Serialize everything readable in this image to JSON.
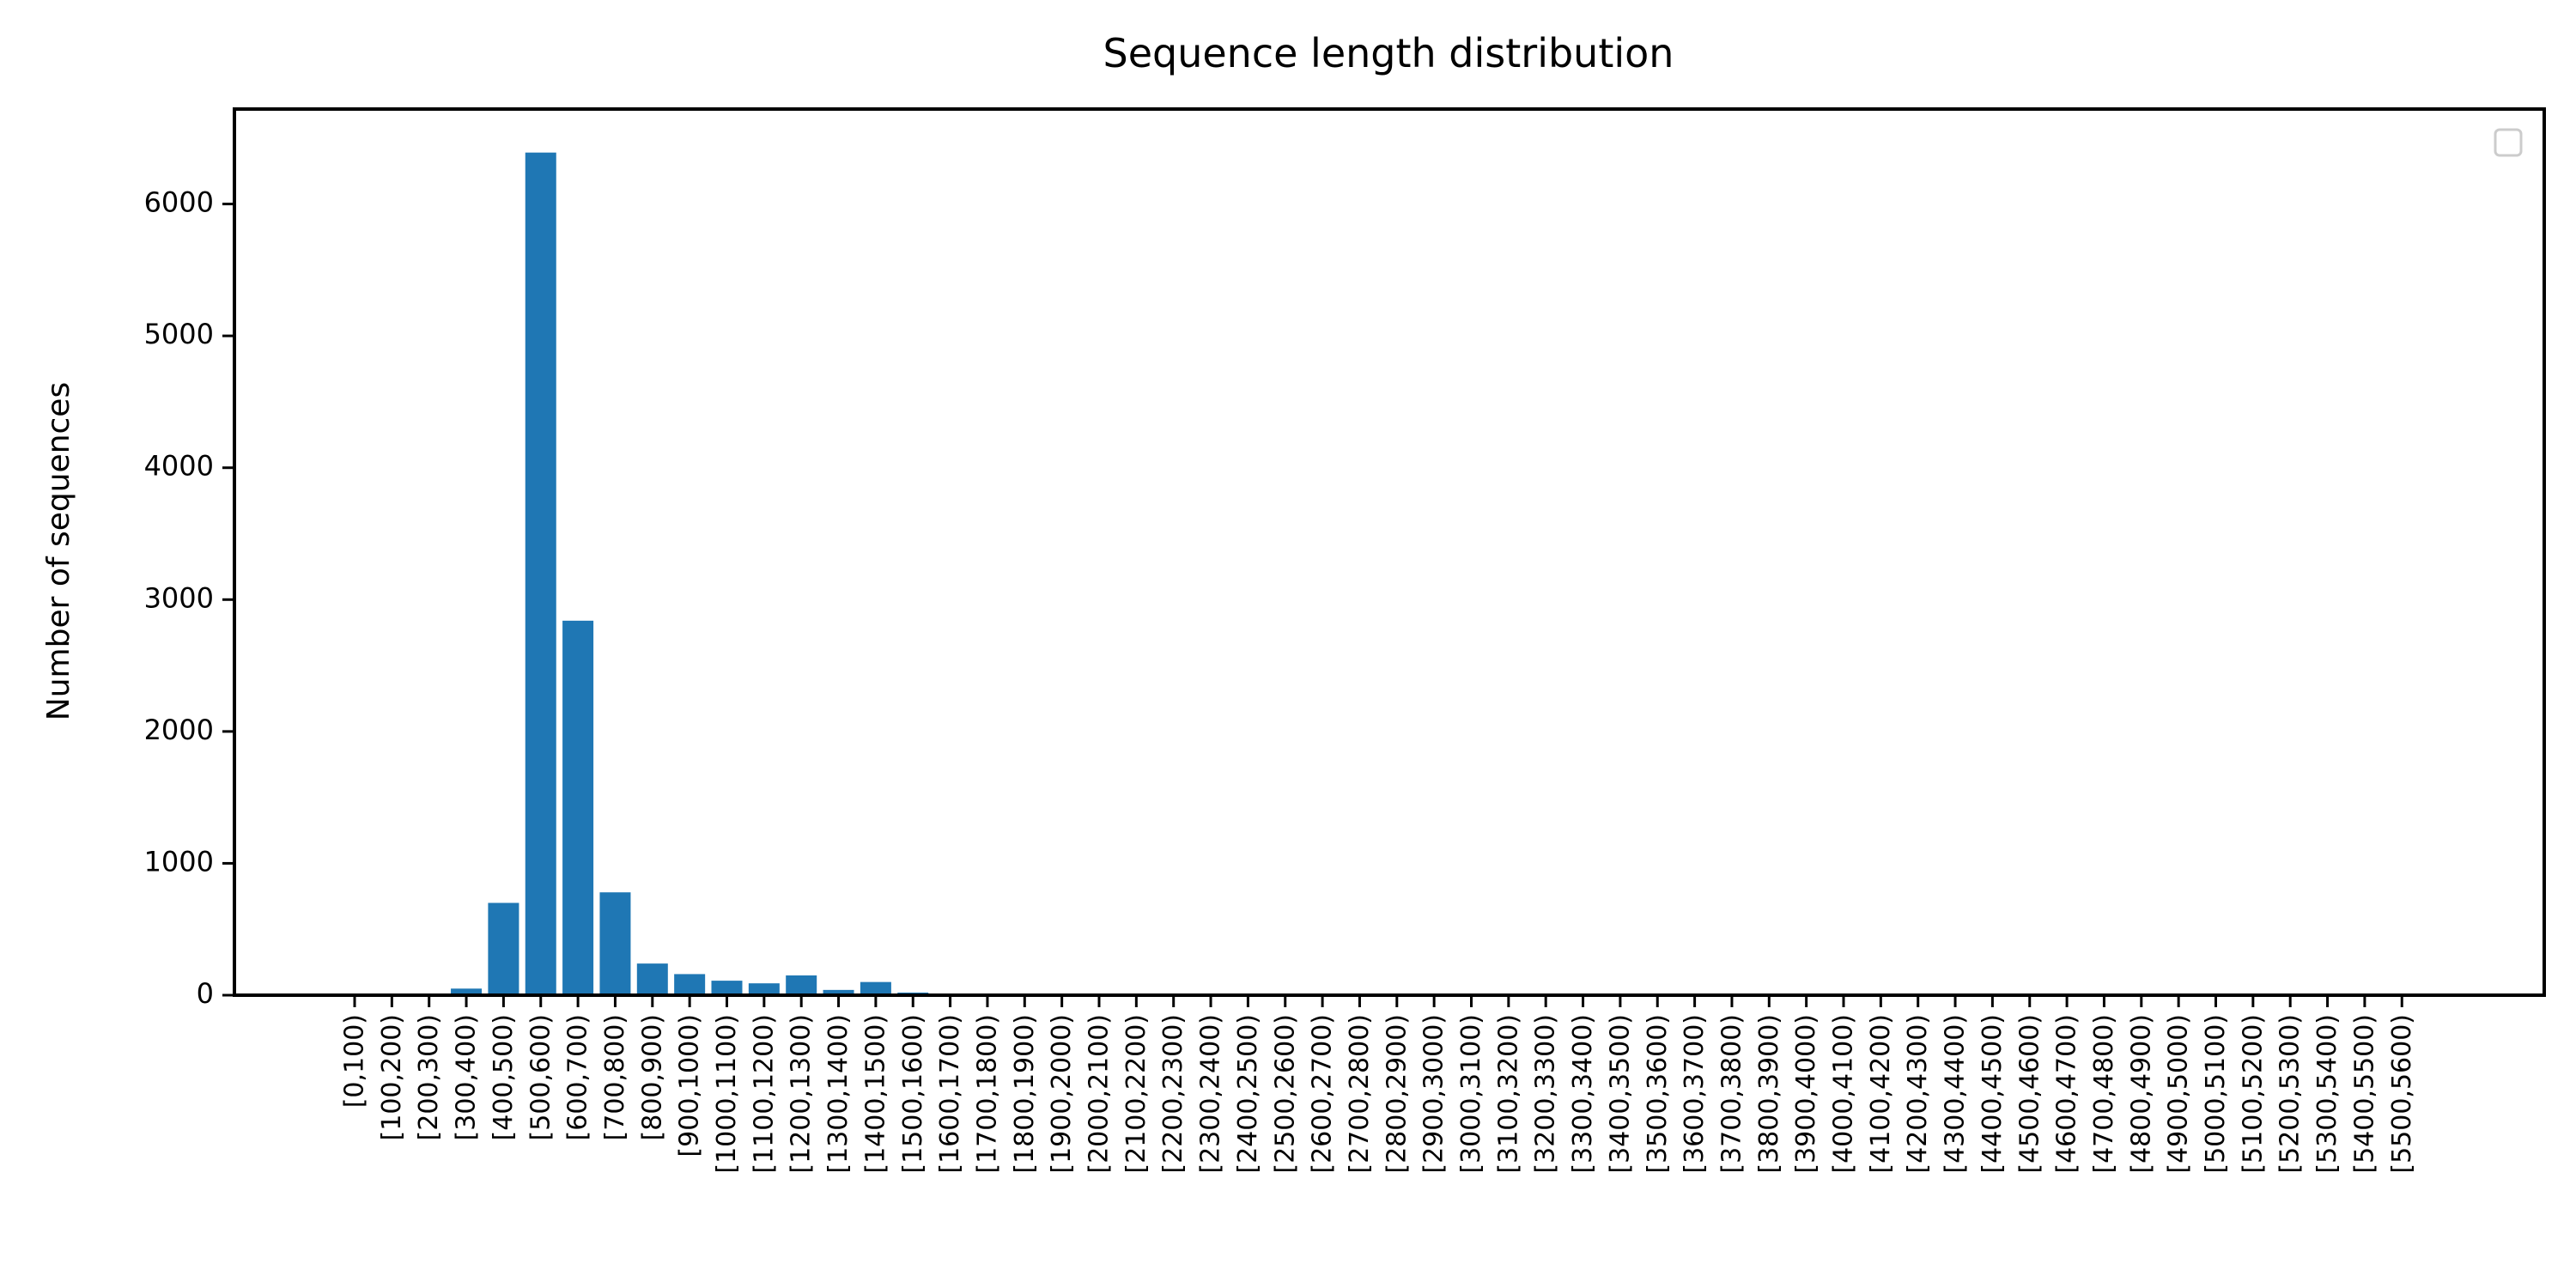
{
  "chart_data": {
    "type": "bar",
    "title": "Sequence length distribution",
    "xlabel": "",
    "ylabel": "Number of sequences",
    "ylim": [
      0,
      6720
    ],
    "yticks": [
      0,
      1000,
      2000,
      3000,
      4000,
      5000,
      6000
    ],
    "grid": false,
    "legend": {
      "placement": "top-right",
      "entries": []
    },
    "colors": {
      "bar": "#1f77b4",
      "axis": "#000000",
      "legend_border": "#cccccc"
    },
    "categories": [
      "[0,100)",
      "[100,200)",
      "[200,300)",
      "[300,400)",
      "[400,500)",
      "[500,600)",
      "[600,700)",
      "[700,800)",
      "[800,900)",
      "[900,1000)",
      "[1000,1100)",
      "[1100,1200)",
      "[1200,1300)",
      "[1300,1400)",
      "[1400,1500)",
      "[1500,1600)",
      "[1600,1700)",
      "[1700,1800)",
      "[1800,1900)",
      "[1900,2000)",
      "[2000,2100)",
      "[2100,2200)",
      "[2200,2300)",
      "[2300,2400)",
      "[2400,2500)",
      "[2500,2600)",
      "[2600,2700)",
      "[2700,2800)",
      "[2800,2900)",
      "[2900,3000)",
      "[3000,3100)",
      "[3100,3200)",
      "[3200,3300)",
      "[3300,3400)",
      "[3400,3500)",
      "[3500,3600)",
      "[3600,3700)",
      "[3700,3800)",
      "[3800,3900)",
      "[3900,4000)",
      "[4000,4100)",
      "[4100,4200)",
      "[4200,4300)",
      "[4300,4400)",
      "[4400,4500)",
      "[4500,4600)",
      "[4600,4700)",
      "[4700,4800)",
      "[4800,4900)",
      "[4900,5000)",
      "[5000,5100)",
      "[5100,5200)",
      "[5200,5300)",
      "[5300,5400)",
      "[5400,5500)",
      "[5500,5600)"
    ],
    "values": [
      0,
      0,
      2,
      50,
      700,
      6390,
      2840,
      780,
      240,
      160,
      110,
      90,
      150,
      40,
      100,
      20,
      8,
      5,
      3,
      2,
      2,
      1,
      1,
      1,
      1,
      0,
      0,
      0,
      0,
      0,
      0,
      0,
      0,
      0,
      0,
      0,
      0,
      0,
      0,
      0,
      0,
      0,
      0,
      0,
      0,
      0,
      0,
      0,
      0,
      0,
      0,
      0,
      0,
      0,
      0,
      0
    ]
  }
}
